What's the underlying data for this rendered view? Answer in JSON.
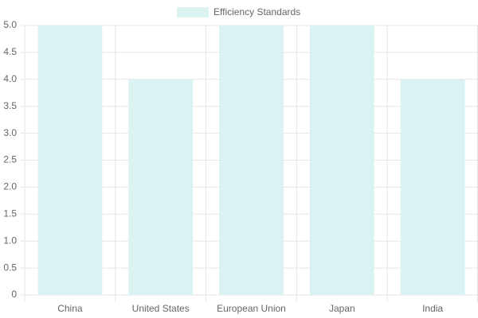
{
  "chart_data": {
    "type": "bar",
    "categories": [
      "China",
      "United States",
      "European Union",
      "Japan",
      "India"
    ],
    "series": [
      {
        "name": "Efficiency Standards",
        "color": "#dbf2f2",
        "values": [
          5,
          4,
          5,
          5,
          4
        ]
      }
    ],
    "ylim": [
      0,
      5
    ],
    "yticks": [
      0,
      0.5,
      {
        "value": 1,
        "label": "1.0"
      },
      1.5,
      {
        "value": 2,
        "label": "2.0"
      },
      2.5,
      {
        "value": 3,
        "label": "3.0"
      },
      3.5,
      {
        "value": 4,
        "label": "4.0"
      },
      4.5,
      {
        "value": 5,
        "label": "5.0"
      }
    ],
    "grid": true,
    "legend": "top"
  }
}
